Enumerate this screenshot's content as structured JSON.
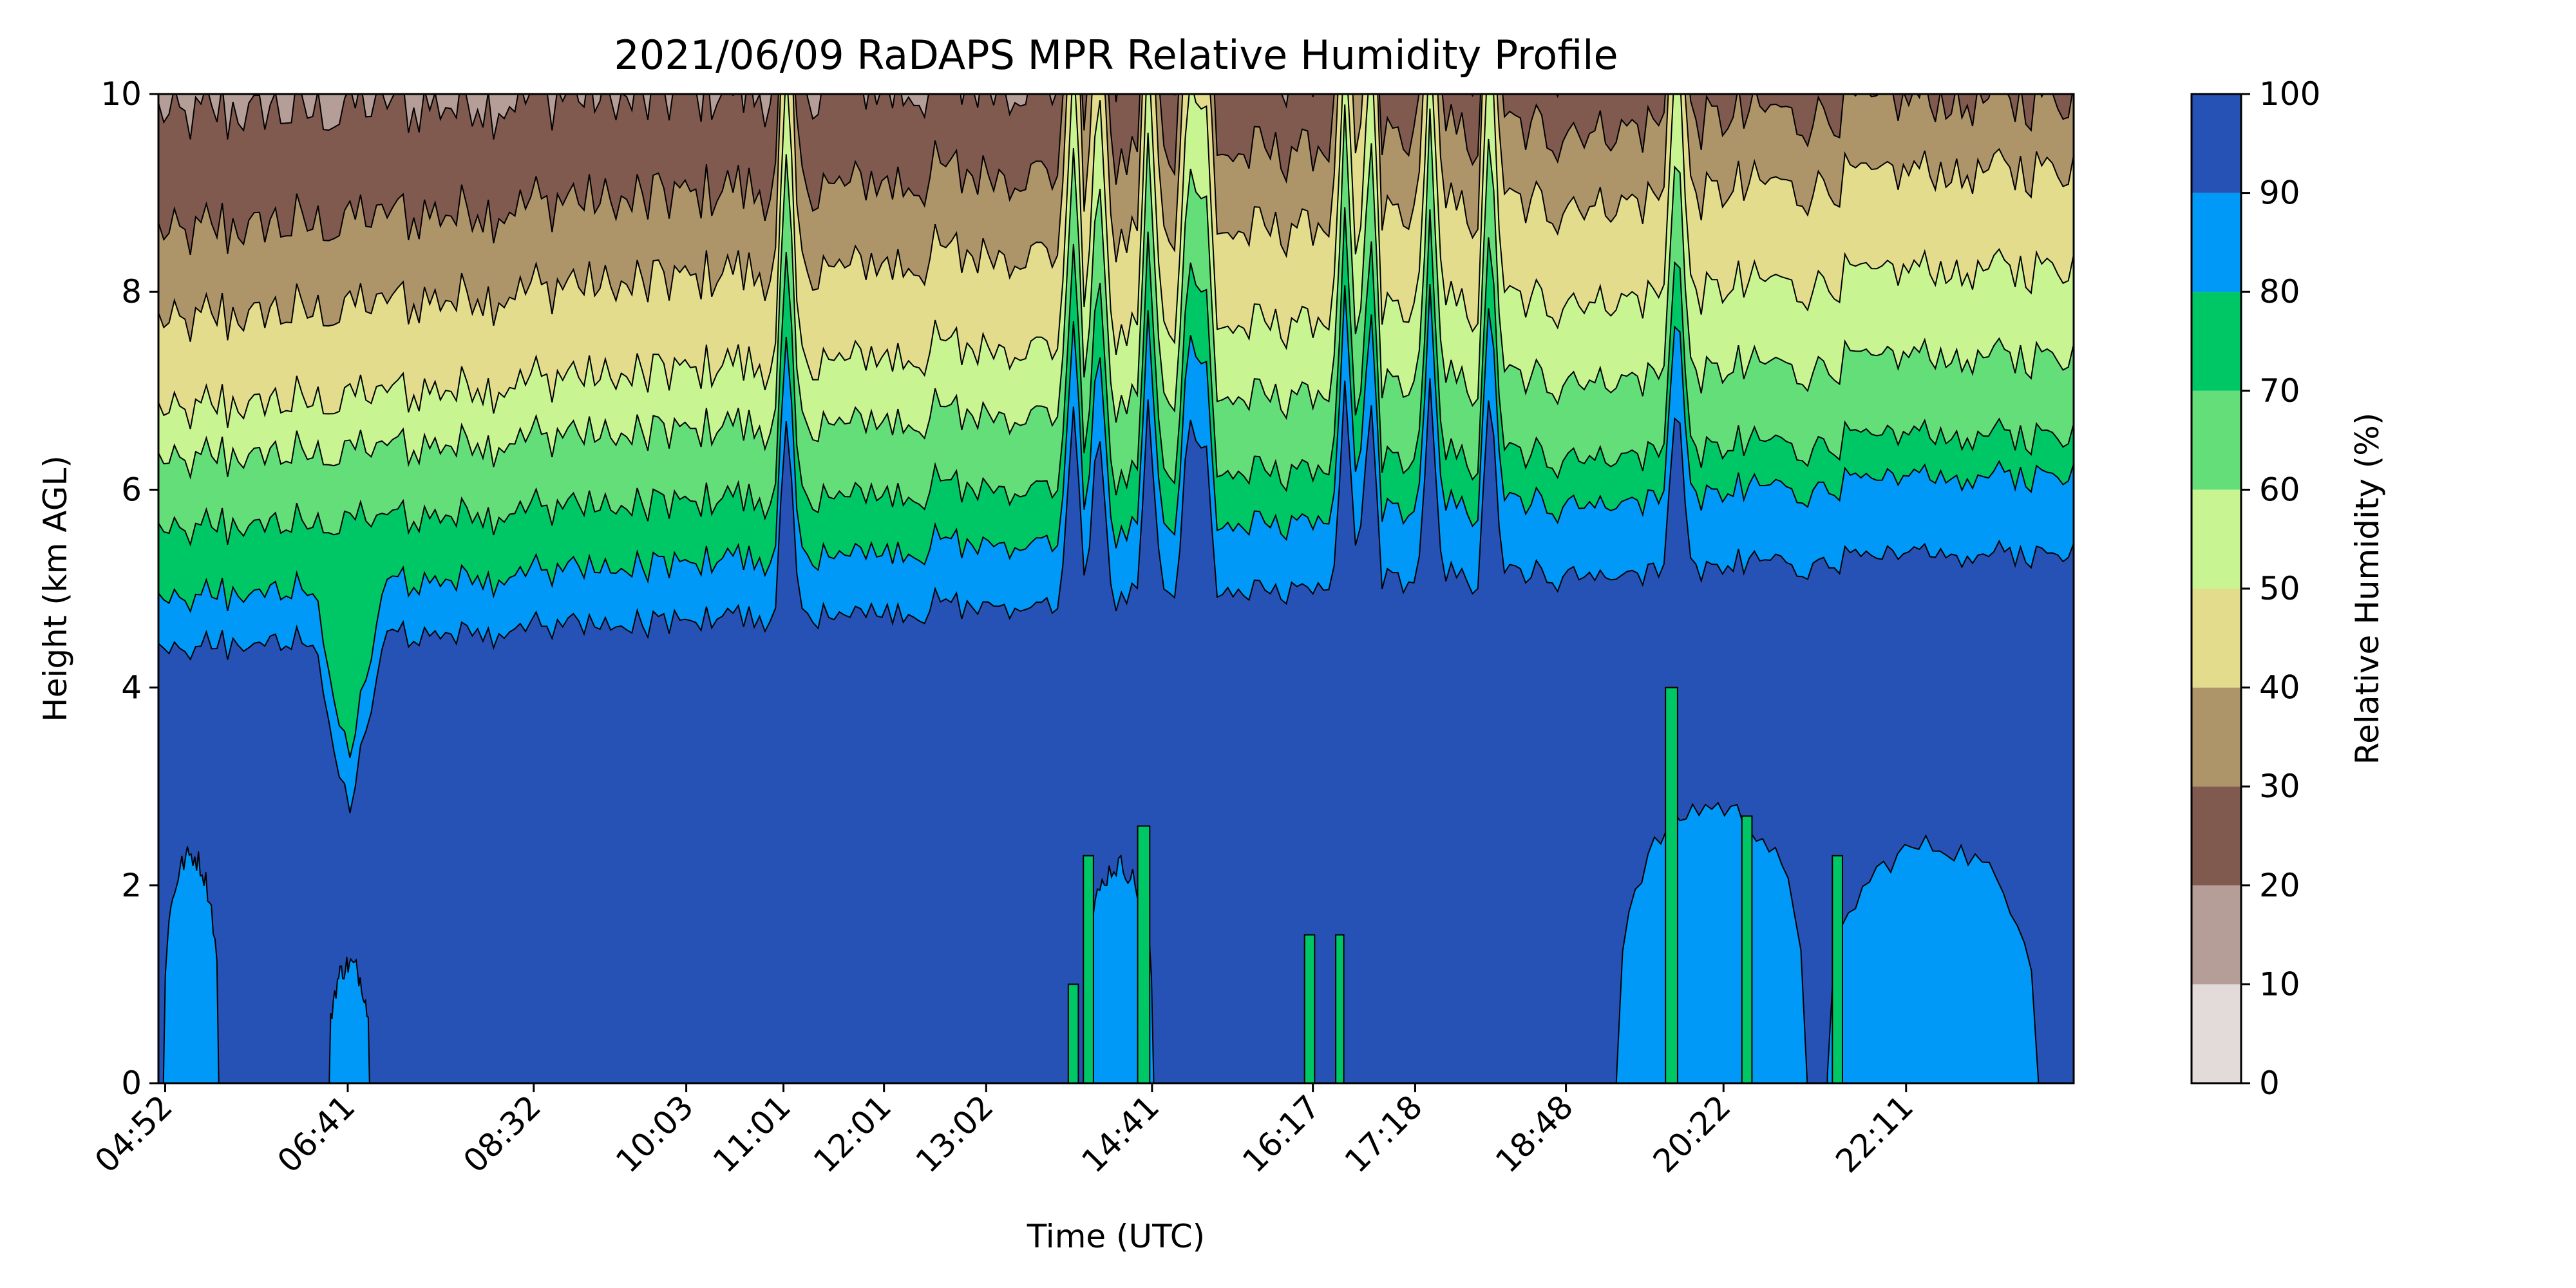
{
  "chart_data": {
    "type": "heatmap",
    "subtype": "filled-contour",
    "title": "2021/06/09 RaDAPS MPR Relative Humidity Profile",
    "xlabel": "Time (UTC)",
    "ylabel": "Height (km AGL)",
    "ylim": [
      0,
      10
    ],
    "y_ticks": [
      0,
      2,
      4,
      6,
      8,
      10
    ],
    "x_tick_labels": [
      "04:52",
      "06:41",
      "08:32",
      "10:03",
      "11:01",
      "12:01",
      "13:02",
      "14:41",
      "16:17",
      "17:18",
      "18:48",
      "20:22",
      "22:11"
    ],
    "x_tick_hours": [
      4.867,
      6.683,
      8.533,
      10.05,
      11.017,
      12.017,
      13.033,
      14.683,
      16.283,
      17.3,
      18.8,
      20.367,
      22.183
    ],
    "x_range_hours": [
      4.8,
      23.85
    ],
    "colorbar": {
      "label": "Relative Humidity (%)",
      "levels": [
        0,
        10,
        20,
        30,
        40,
        50,
        60,
        70,
        80,
        90,
        100
      ],
      "colors": [
        "#e3dbd9",
        "#b59d98",
        "#80594f",
        "#ad9569",
        "#e3dc8c",
        "#c8f591",
        "#63de78",
        "#00c766",
        "#0099f7",
        "#2752b5"
      ]
    },
    "base_profile": {
      "description_levels_rh": [
        90,
        80,
        70,
        60,
        50,
        40,
        30,
        20
      ],
      "approx_height_km_early": [
        4.4,
        4.9,
        5.6,
        6.3,
        6.8,
        7.7,
        8.6,
        9.8
      ],
      "approx_height_km_late": [
        5.4,
        6.2,
        6.6,
        7.4,
        8.3,
        9.3,
        10.0,
        10.5
      ]
    },
    "moist_spikes_hours": [
      11.05,
      13.9,
      14.15,
      14.65,
      15.05,
      15.2,
      16.6,
      16.85,
      17.45,
      18.05,
      19.9
    ]
  }
}
